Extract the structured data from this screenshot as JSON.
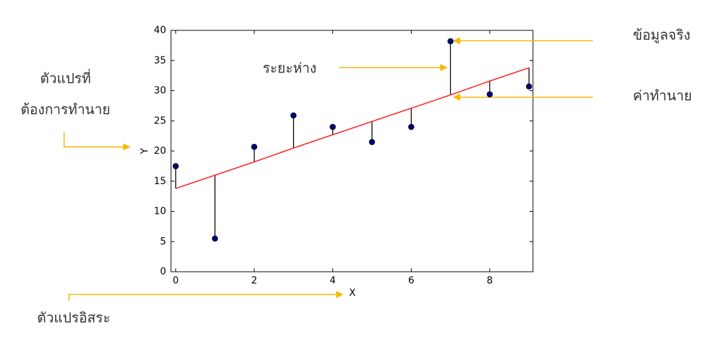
{
  "chart_data": {
    "type": "scatter",
    "xlabel": "X",
    "ylabel": "Y",
    "x": [
      0,
      1,
      2,
      3,
      4,
      5,
      6,
      7,
      8,
      9
    ],
    "series": [
      {
        "name": "ข้อมูลจริง",
        "color": "#000080",
        "values": [
          17.5,
          5.5,
          20.7,
          25.9,
          24.0,
          21.5,
          24.0,
          38.2,
          29.4,
          30.7
        ]
      },
      {
        "name": "ค่าทำนาย",
        "color": "#ff2020",
        "values": [
          13.8,
          16.0,
          18.2,
          20.5,
          22.7,
          24.9,
          27.1,
          29.3,
          31.6,
          33.8
        ]
      }
    ],
    "xlim": [
      -0.12,
      9.1
    ],
    "ylim": [
      0,
      40
    ],
    "xticks": [
      0,
      2,
      4,
      6,
      8
    ],
    "yticks": [
      0,
      5,
      10,
      15,
      20,
      25,
      30,
      35,
      40
    ],
    "annotations": [
      "ระยะห่าง",
      "ตัวแปรที่",
      "ต้องการทำนาย",
      "ตัวแปรอิสระ"
    ]
  }
}
